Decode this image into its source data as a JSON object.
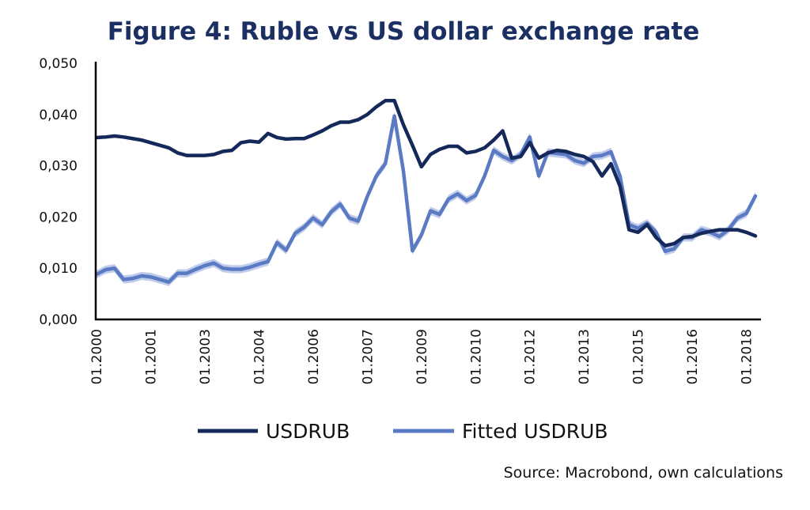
{
  "chart_data": {
    "type": "line",
    "title": "Figure 4: Ruble vs US dollar exchange rate",
    "xlabel": "",
    "ylabel": "",
    "frequency": "quarterly",
    "x_tick_labels": [
      "01.2000",
      "01.2001",
      "01.2003",
      "01.2004",
      "01.2006",
      "01.2007",
      "01.2009",
      "01.2010",
      "01.2012",
      "01.2013",
      "01.2015",
      "01.2016",
      "01.2018"
    ],
    "x_tick_step": 6,
    "y_ticks": [
      "0,000",
      "0,010",
      "0,020",
      "0,030",
      "0,040",
      "0,050"
    ],
    "ylim": [
      0,
      0.05
    ],
    "grid": false,
    "legend_position": "bottom",
    "series": [
      {
        "name": "USDRUB",
        "color": "#14285a",
        "values": [
          0.0355,
          0.0356,
          0.0358,
          0.0356,
          0.0353,
          0.035,
          0.0345,
          0.034,
          0.0335,
          0.0325,
          0.032,
          0.032,
          0.032,
          0.0322,
          0.0328,
          0.033,
          0.0345,
          0.0348,
          0.0346,
          0.0363,
          0.0355,
          0.0352,
          0.0353,
          0.0353,
          0.036,
          0.0368,
          0.0378,
          0.0385,
          0.0385,
          0.039,
          0.04,
          0.0415,
          0.0427,
          0.0427,
          0.038,
          0.034,
          0.0298,
          0.0322,
          0.0332,
          0.0338,
          0.0338,
          0.0325,
          0.0328,
          0.0335,
          0.035,
          0.0368,
          0.0315,
          0.0318,
          0.0345,
          0.0315,
          0.0325,
          0.033,
          0.0328,
          0.0322,
          0.0318,
          0.0308,
          0.028,
          0.0304,
          0.026,
          0.0175,
          0.017,
          0.0185,
          0.016,
          0.0144,
          0.0148,
          0.016,
          0.0162,
          0.0168,
          0.0172,
          0.0175,
          0.0175,
          0.0175,
          0.017,
          0.0163
        ]
      },
      {
        "name": "Fitted USDRUB",
        "color": "#5a7bc4",
        "band_color": "#b9c7e8",
        "band_halfwidth": 0.0008,
        "values": [
          0.0088,
          0.0097,
          0.01,
          0.0078,
          0.008,
          0.0085,
          0.0083,
          0.0078,
          0.0073,
          0.009,
          0.009,
          0.0098,
          0.0105,
          0.011,
          0.01,
          0.0098,
          0.0098,
          0.0102,
          0.0108,
          0.0113,
          0.015,
          0.0135,
          0.0168,
          0.018,
          0.0198,
          0.0185,
          0.021,
          0.0225,
          0.0198,
          0.0192,
          0.024,
          0.028,
          0.0304,
          0.0397,
          0.029,
          0.0134,
          0.0165,
          0.0212,
          0.0205,
          0.0235,
          0.0245,
          0.0232,
          0.0242,
          0.028,
          0.033,
          0.0318,
          0.031,
          0.0322,
          0.0356,
          0.028,
          0.0326,
          0.0324,
          0.0322,
          0.031,
          0.0305,
          0.0318,
          0.032,
          0.0327,
          0.028,
          0.0185,
          0.0178,
          0.0188,
          0.017,
          0.0133,
          0.0138,
          0.016,
          0.016,
          0.0175,
          0.017,
          0.0162,
          0.0175,
          0.0198,
          0.0207,
          0.0241
        ]
      }
    ],
    "source": "Source: Macrobond, own calculations"
  }
}
